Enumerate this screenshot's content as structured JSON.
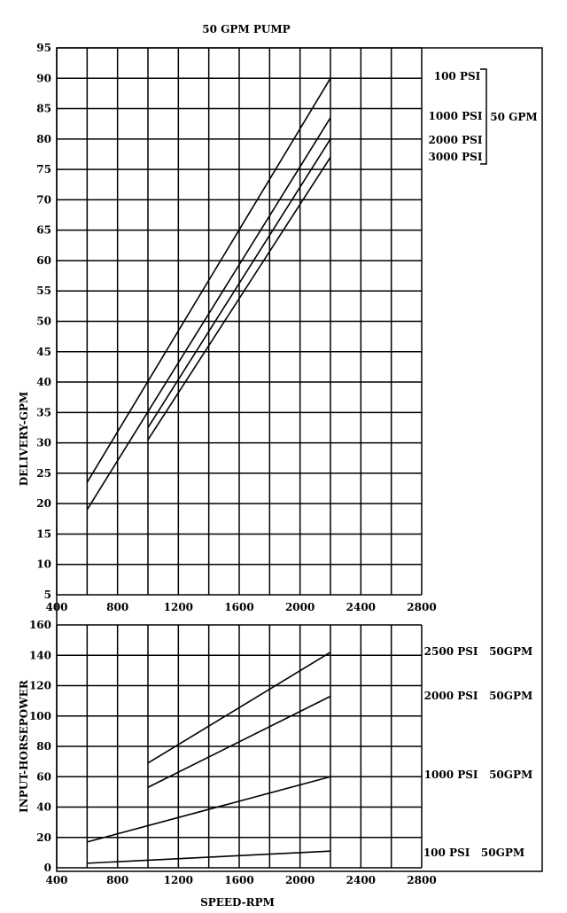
{
  "title": "50 GPM PUMP",
  "chart_data": [
    {
      "type": "line",
      "ylabel": "DELIVERY-GPM",
      "xlim": [
        400,
        2800
      ],
      "ylim": [
        5,
        95
      ],
      "xticks": [
        400,
        800,
        1200,
        1600,
        2000,
        2400,
        2800
      ],
      "yticks": [
        5,
        10,
        15,
        20,
        25,
        30,
        35,
        40,
        45,
        50,
        55,
        60,
        65,
        70,
        75,
        80,
        85,
        90,
        95
      ],
      "grid": true,
      "series": [
        {
          "name": "100 PSI",
          "x": [
            600,
            2200
          ],
          "y": [
            23.5,
            90
          ]
        },
        {
          "name": "1000 PSI",
          "x": [
            600,
            2200
          ],
          "y": [
            19,
            83.5
          ]
        },
        {
          "name": "2000 PSI",
          "x": [
            1000,
            2200
          ],
          "y": [
            32.5,
            80
          ]
        },
        {
          "name": "3000 PSI",
          "x": [
            1000,
            2200
          ],
          "y": [
            30.5,
            77
          ]
        }
      ],
      "bracket_label": "50 GPM"
    },
    {
      "type": "line",
      "xlabel": "SPEED-RPM",
      "ylabel": "INPUT-HORSEPOWER",
      "xlim": [
        400,
        2800
      ],
      "ylim": [
        0,
        160
      ],
      "xticks": [
        400,
        800,
        1200,
        1600,
        2000,
        2400,
        2800
      ],
      "yticks": [
        0,
        20,
        40,
        60,
        80,
        100,
        120,
        140,
        160
      ],
      "grid": true,
      "series": [
        {
          "name": "2500 PSI   50GPM",
          "x": [
            1000,
            2200
          ],
          "y": [
            69,
            142
          ]
        },
        {
          "name": "2000 PSI   50GPM",
          "x": [
            1000,
            2200
          ],
          "y": [
            53,
            113
          ]
        },
        {
          "name": "1000 PSI   50GPM",
          "x": [
            600,
            2200
          ],
          "y": [
            17,
            60
          ]
        },
        {
          "name": "100 PSI   50GPM",
          "x": [
            600,
            2200
          ],
          "y": [
            3,
            11
          ]
        }
      ]
    }
  ]
}
